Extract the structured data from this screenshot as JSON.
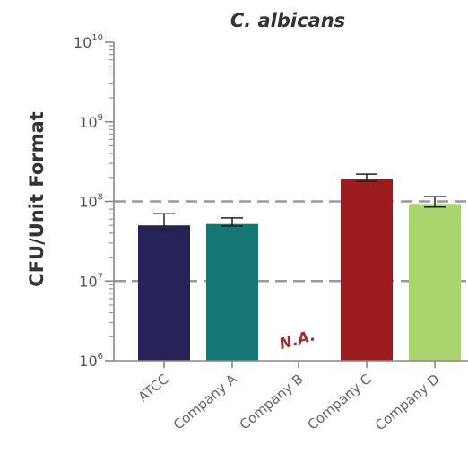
{
  "chart_data": {
    "type": "bar",
    "title": "C. albicans",
    "ylabel": "CFU/Unit Format",
    "xlabel": "",
    "y_scale": "log10",
    "ylim": [
      1000000,
      10000000000
    ],
    "y_ticks": [
      {
        "base": "10",
        "exp": "6",
        "value": 1000000
      },
      {
        "base": "10",
        "exp": "7",
        "value": 10000000
      },
      {
        "base": "10",
        "exp": "8",
        "value": 100000000
      },
      {
        "base": "10",
        "exp": "9",
        "value": 1000000000
      },
      {
        "base": "10",
        "exp": "10",
        "value": 10000000000
      }
    ],
    "reference_lines": [
      10000000,
      100000000
    ],
    "categories": [
      "ATCC",
      "Company A",
      "Company B",
      "Company C",
      "Company D"
    ],
    "values": [
      50000000,
      52000000,
      null,
      190000000,
      93000000
    ],
    "error_upper": [
      70000000,
      62000000,
      null,
      220000000,
      115000000
    ],
    "error_lower": [
      44000000,
      49000000,
      null,
      178000000,
      85000000
    ],
    "colors": [
      "#262359",
      "#137775",
      null,
      "#9b1b1e",
      "#a9d46e"
    ],
    "missing_label": "N.A.",
    "missing_color": "#9b2f2f",
    "grid": false
  }
}
